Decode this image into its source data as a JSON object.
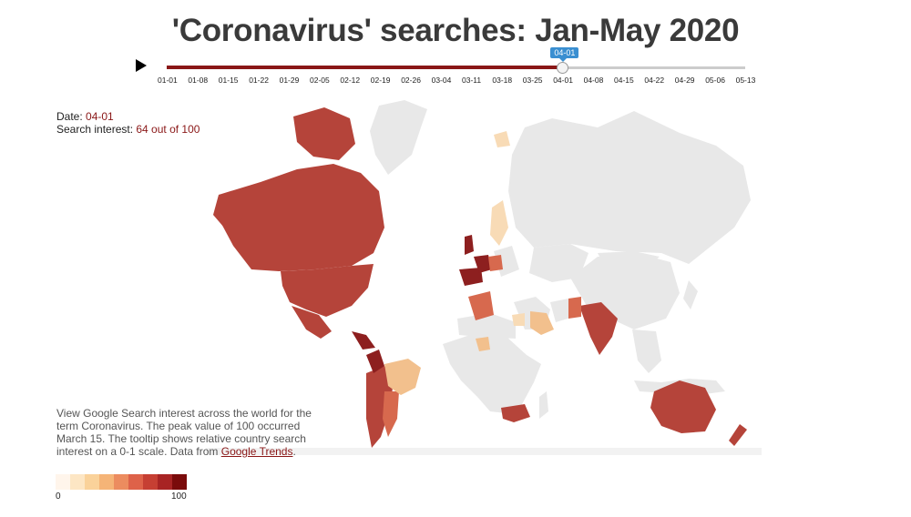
{
  "title": "'Coronavirus' searches: Jan-May 2020",
  "controls": {
    "play_icon": "play-icon",
    "dates": [
      "01-01",
      "01-08",
      "01-15",
      "01-22",
      "01-29",
      "02-05",
      "02-12",
      "02-19",
      "02-26",
      "03-04",
      "03-11",
      "03-18",
      "03-25",
      "04-01",
      "04-08",
      "04-15",
      "04-22",
      "04-29",
      "05-06",
      "05-13"
    ],
    "selected_date": "04-01",
    "progress": 0.684
  },
  "info": {
    "date_label": "Date: ",
    "date_value": "04-01",
    "interest_label": "Search interest: ",
    "interest_value": "64 out of 100"
  },
  "description": {
    "text": "View Google Search interest across the world for the term Coronavirus. The peak value of 100 occurred March 15. The tooltip shows relative country search interest on a 0-1 scale. Data from ",
    "link": "Google Trends",
    "end": "."
  },
  "legend": {
    "min": "0",
    "max": "100",
    "colors": [
      "#fff5eb",
      "#fde6c4",
      "#fad29a",
      "#f5b477",
      "#ec8c5f",
      "#de6249",
      "#c63f33",
      "#a82424",
      "#7a0b0b"
    ]
  },
  "map_colors": {
    "no_data": "#e8e8e8",
    "high": "#b5443a",
    "very_high": "#8d1f1f",
    "mid": "#d7694e",
    "light": "#f2c08d",
    "pale": "#f8dbb6"
  }
}
